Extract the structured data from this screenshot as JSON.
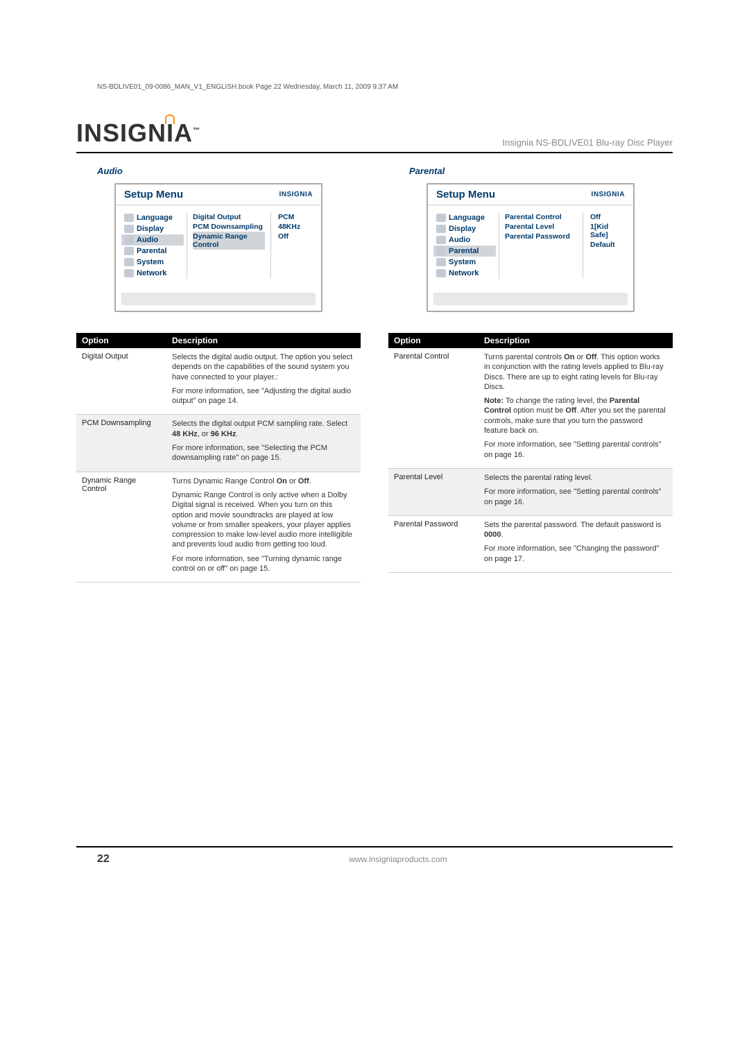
{
  "header_note": "NS-BDLIVE01_09-0086_MAN_V1_ENGLISH.book  Page 22  Wednesday, March 11, 2009  9:37 AM",
  "brand": "INSIGNIA",
  "brand_tm": "™",
  "product_title": "Insignia NS-BDLIVE01 Blu-ray Disc Player",
  "audio": {
    "heading": "Audio",
    "menu_title": "Setup Menu",
    "menu_brand": "INSIGNIA",
    "sidebar": [
      "Language",
      "Display",
      "Audio",
      "Parental",
      "System",
      "Network"
    ],
    "active_index": 2,
    "options": [
      "Digital Output",
      "PCM Downsampling",
      "Dynamic Range Control"
    ],
    "option_active_index": 2,
    "values": [
      "PCM",
      "48KHz",
      "Off"
    ],
    "table_headers": [
      "Option",
      "Description"
    ],
    "rows": [
      {
        "name": "Digital Output",
        "paras": [
          "Selects the digital audio output. The option you select depends on the capabilities of the sound system you have connected to your player.:",
          "For more information, see \"Adjusting the digital audio output\" on page 14."
        ]
      },
      {
        "name": "PCM Downsampling",
        "shade": true,
        "paras": [
          "Selects the digital output PCM sampling rate. Select <b>48 KHz</b>, or <b>96 KHz</b>.",
          "For more information, see \"Selecting the PCM downsampling rate\" on page 15."
        ]
      },
      {
        "name": "Dynamic Range Control",
        "paras": [
          "Turns Dynamic Range Control <b>On</b> or <b>Off</b>.",
          "Dynamic Range Control is only active when a Dolby Digital signal is received. When you turn on this option and movie soundtracks are played at low volume or from smaller speakers, your player applies compression to make low-level audio more intelligible and prevents loud audio from getting too loud.",
          "For more information, see \"Turning dynamic range control on or off\" on page 15."
        ]
      }
    ]
  },
  "parental": {
    "heading": "Parental",
    "menu_title": "Setup Menu",
    "menu_brand": "INSIGNIA",
    "sidebar": [
      "Language",
      "Display",
      "Audio",
      "Parental",
      "System",
      "Network"
    ],
    "active_index": 3,
    "options": [
      "Parental Control",
      "Parental Level",
      "Parental Password"
    ],
    "option_active_index": -1,
    "values": [
      "Off",
      "1[Kid Safe]",
      "Default"
    ],
    "table_headers": [
      "Option",
      "Description"
    ],
    "rows": [
      {
        "name": "Parental Control",
        "paras": [
          "Turns parental controls <b>On</b> or <b>Off</b>. This option works in conjunction with the rating levels applied to Blu-ray Discs. There are up to eight rating levels for Blu-ray Discs.",
          "<b>Note:</b> To change the rating level, the <b>Parental Control</b> option must be <b>Off</b>. After you set the parental controls, make sure that you turn the password feature back on.",
          "For more information, see \"Setting parental controls\" on page 16."
        ]
      },
      {
        "name": "Parental Level",
        "shade": true,
        "paras": [
          "Selects the parental rating level.",
          "For more information, see \"Setting parental controls\" on page 16."
        ]
      },
      {
        "name": "Parental Password",
        "paras": [
          "Sets the parental password. The default password is <b>0000</b>.",
          "For more information, see \"Changing the password\" on page 17."
        ]
      }
    ]
  },
  "page_number": "22",
  "footer_url": "www.insigniaproducts.com"
}
